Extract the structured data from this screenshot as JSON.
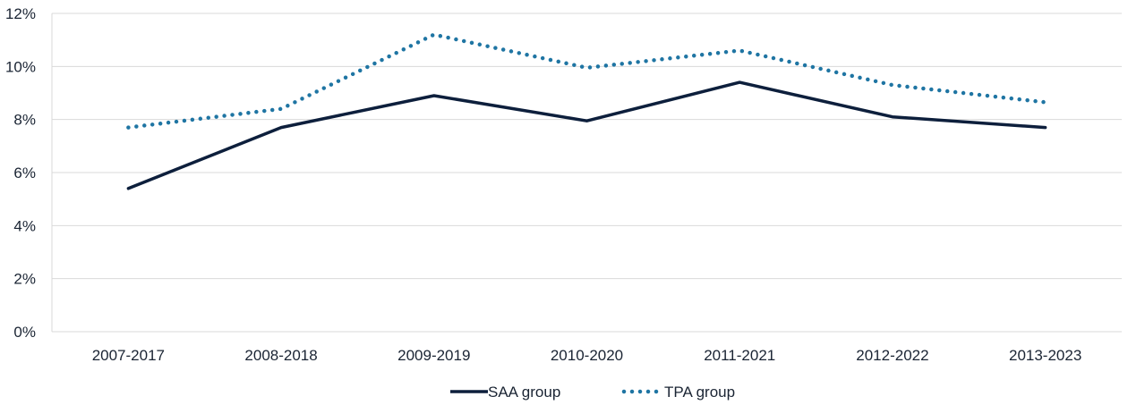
{
  "chart_data": {
    "type": "line",
    "title": "",
    "xlabel": "",
    "ylabel": "",
    "categories": [
      "2007-2017",
      "2008-2018",
      "2009-2019",
      "2010-2020",
      "2011-2021",
      "2012-2022",
      "2013-2023"
    ],
    "ylim": [
      0,
      12
    ],
    "yticks": [
      0,
      2,
      4,
      6,
      8,
      10,
      12
    ],
    "ytick_labels": [
      "0%",
      "2%",
      "4%",
      "6%",
      "8%",
      "10%",
      "12%"
    ],
    "grid": true,
    "legend_position": "bottom",
    "series": [
      {
        "name": "SAA group",
        "style": "solid",
        "color": "#0d1f3c",
        "values": [
          5.4,
          7.7,
          8.9,
          7.95,
          9.4,
          8.1,
          7.7
        ]
      },
      {
        "name": "TPA group",
        "style": "dotted",
        "color": "#1f75a3",
        "values": [
          7.7,
          8.4,
          11.2,
          9.95,
          10.6,
          9.3,
          8.65
        ]
      }
    ]
  }
}
